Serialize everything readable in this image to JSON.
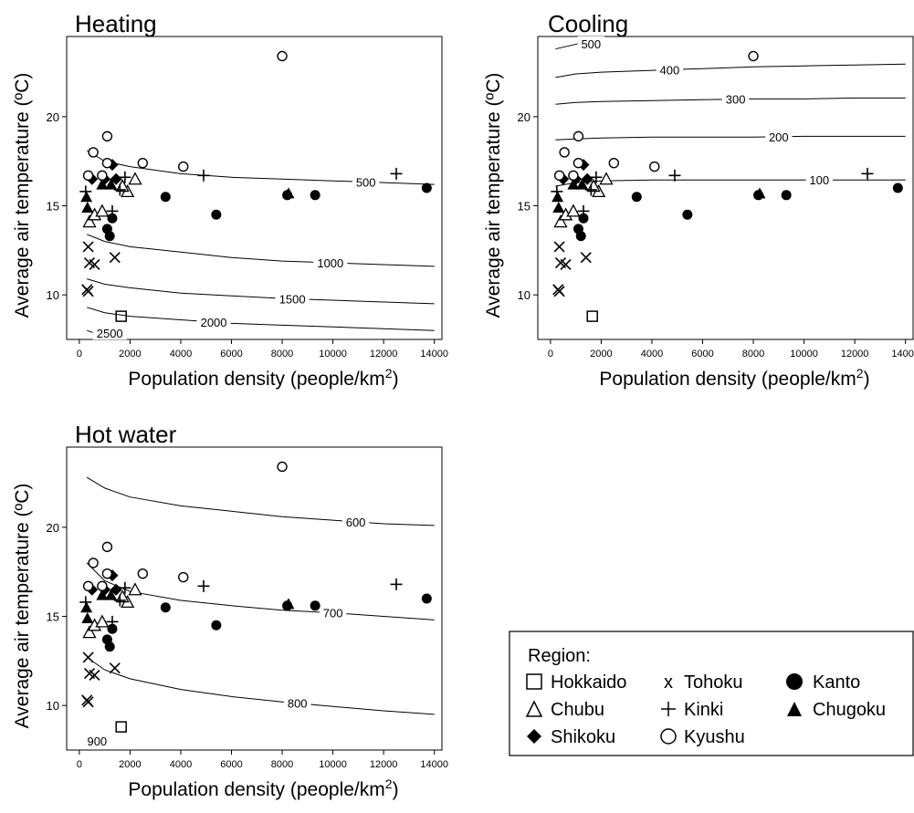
{
  "chart_data": [
    {
      "type": "scatter",
      "title": "Heating",
      "xlabel": "Population density (people/km",
      "xlabel_sup": "2",
      "xlabel_end": ")",
      "ylabel": "Average air temperature (ºC)",
      "xlim": [
        -500,
        14300
      ],
      "ylim": [
        7.5,
        24.5
      ],
      "xticks": [
        0,
        2000,
        4000,
        6000,
        8000,
        10000,
        12000,
        14000
      ],
      "yticks": [
        10,
        15,
        20
      ],
      "grid": false,
      "contours": [
        {
          "label": "500",
          "points": [
            [
              300,
              18.1
            ],
            [
              1000,
              17.5
            ],
            [
              2000,
              17.2
            ],
            [
              4000,
              16.8
            ],
            [
              6000,
              16.6
            ],
            [
              8000,
              16.5
            ],
            [
              10000,
              16.4
            ],
            [
              12000,
              16.3
            ],
            [
              14000,
              16.2
            ]
          ],
          "label_x": 11300
        },
        {
          "label": "1000",
          "points": [
            [
              300,
              13.4
            ],
            [
              1000,
              13.0
            ],
            [
              2000,
              12.7
            ],
            [
              4000,
              12.4
            ],
            [
              6000,
              12.1
            ],
            [
              8000,
              11.9
            ],
            [
              10000,
              11.8
            ],
            [
              12000,
              11.7
            ],
            [
              14000,
              11.6
            ]
          ],
          "label_x": 9900
        },
        {
          "label": "1500",
          "points": [
            [
              300,
              10.9
            ],
            [
              1000,
              10.6
            ],
            [
              2000,
              10.4
            ],
            [
              4000,
              10.1
            ],
            [
              6000,
              9.95
            ],
            [
              8000,
              9.8
            ],
            [
              10000,
              9.7
            ],
            [
              12000,
              9.6
            ],
            [
              14000,
              9.5
            ]
          ],
          "label_x": 8400
        },
        {
          "label": "2000",
          "points": [
            [
              300,
              9.3
            ],
            [
              1000,
              9.0
            ],
            [
              2000,
              8.8
            ],
            [
              4000,
              8.6
            ],
            [
              6000,
              8.4
            ],
            [
              8000,
              8.3
            ],
            [
              10000,
              8.2
            ],
            [
              12000,
              8.1
            ],
            [
              14000,
              8.0
            ]
          ],
          "label_x": 5300
        },
        {
          "label": "2500",
          "points": [
            [
              300,
              8.0
            ],
            [
              500,
              7.9
            ],
            [
              700,
              7.85
            ]
          ],
          "label_x": 1200
        }
      ]
    },
    {
      "type": "scatter",
      "title": "Cooling",
      "xlabel": "Population density (people/km",
      "xlabel_sup": "2",
      "xlabel_end": ")",
      "ylabel": "Average air temperature (ºC)",
      "xlim": [
        -500,
        14300
      ],
      "ylim": [
        7.5,
        24.5
      ],
      "xticks": [
        0,
        2000,
        4000,
        6000,
        8000,
        10000,
        12000,
        14000
      ],
      "yticks": [
        10,
        15,
        20
      ],
      "grid": false,
      "contours": [
        {
          "label": "500",
          "points": [
            [
              200,
              23.8
            ],
            [
              500,
              23.9
            ],
            [
              800,
              24.0
            ],
            [
              1100,
              24.1
            ]
          ],
          "label_x": 1600
        },
        {
          "label": "400",
          "points": [
            [
              200,
              22.2
            ],
            [
              1000,
              22.4
            ],
            [
              2000,
              22.5
            ],
            [
              4000,
              22.6
            ],
            [
              6000,
              22.7
            ],
            [
              8000,
              22.8
            ],
            [
              10000,
              22.85
            ],
            [
              12000,
              22.9
            ],
            [
              14000,
              22.95
            ]
          ],
          "label_x": 4700
        },
        {
          "label": "300",
          "points": [
            [
              200,
              20.7
            ],
            [
              1000,
              20.8
            ],
            [
              2000,
              20.85
            ],
            [
              4000,
              20.9
            ],
            [
              6000,
              20.95
            ],
            [
              8000,
              21.0
            ],
            [
              10000,
              21.0
            ],
            [
              12000,
              21.05
            ],
            [
              14000,
              21.05
            ]
          ],
          "label_x": 7300
        },
        {
          "label": "200",
          "points": [
            [
              200,
              18.7
            ],
            [
              1000,
              18.75
            ],
            [
              2000,
              18.8
            ],
            [
              4000,
              18.85
            ],
            [
              6000,
              18.85
            ],
            [
              8000,
              18.85
            ],
            [
              10000,
              18.9
            ],
            [
              12000,
              18.9
            ],
            [
              14000,
              18.9
            ]
          ],
          "label_x": 9000
        },
        {
          "label": "100",
          "points": [
            [
              200,
              16.1
            ],
            [
              1000,
              16.3
            ],
            [
              2000,
              16.4
            ],
            [
              4000,
              16.45
            ],
            [
              6000,
              16.45
            ],
            [
              8000,
              16.45
            ],
            [
              10000,
              16.45
            ],
            [
              12000,
              16.45
            ],
            [
              14000,
              16.45
            ]
          ],
          "label_x": 10600
        }
      ]
    },
    {
      "type": "scatter",
      "title": "Hot water",
      "xlabel": "Population density (people/km",
      "xlabel_sup": "2",
      "xlabel_end": ")",
      "ylabel": "Average air temperature (ºC)",
      "xlim": [
        -500,
        14300
      ],
      "ylim": [
        7.5,
        24.5
      ],
      "xticks": [
        0,
        2000,
        4000,
        6000,
        8000,
        10000,
        12000,
        14000
      ],
      "yticks": [
        10,
        15,
        20
      ],
      "grid": false,
      "contours": [
        {
          "label": "600",
          "points": [
            [
              300,
              22.8
            ],
            [
              1000,
              22.2
            ],
            [
              2000,
              21.7
            ],
            [
              4000,
              21.2
            ],
            [
              6000,
              20.9
            ],
            [
              8000,
              20.6
            ],
            [
              10000,
              20.4
            ],
            [
              12000,
              20.2
            ],
            [
              14000,
              20.1
            ]
          ],
          "label_x": 10900
        },
        {
          "label": "700",
          "points": [
            [
              300,
              18.0
            ],
            [
              1000,
              17.0
            ],
            [
              2000,
              16.4
            ],
            [
              4000,
              15.9
            ],
            [
              6000,
              15.6
            ],
            [
              8000,
              15.35
            ],
            [
              10000,
              15.2
            ],
            [
              12000,
              15.0
            ],
            [
              14000,
              14.8
            ]
          ],
          "label_x": 10000
        },
        {
          "label": "800",
          "points": [
            [
              300,
              12.7
            ],
            [
              1000,
              12.0
            ],
            [
              2000,
              11.5
            ],
            [
              4000,
              10.9
            ],
            [
              6000,
              10.5
            ],
            [
              8000,
              10.2
            ],
            [
              10000,
              9.95
            ],
            [
              12000,
              9.7
            ],
            [
              14000,
              9.5
            ]
          ],
          "label_x": 8600
        },
        {
          "label": "900",
          "points": [
            [
              300,
              8.1
            ],
            [
              500,
              8.0
            ]
          ],
          "label_x": 700
        }
      ]
    }
  ],
  "legend": {
    "title": "Region:",
    "items": [
      {
        "label": "Hokkaido",
        "marker": "open-square"
      },
      {
        "label": "Tohoku",
        "marker": "x"
      },
      {
        "label": "Kanto",
        "marker": "filled-circle"
      },
      {
        "label": "Chubu",
        "marker": "open-triangle"
      },
      {
        "label": "Kinki",
        "marker": "plus"
      },
      {
        "label": "Chugoku",
        "marker": "filled-triangle"
      },
      {
        "label": "Shikoku",
        "marker": "filled-diamond"
      },
      {
        "label": "Kyushu",
        "marker": "open-circle"
      }
    ]
  },
  "points": [
    {
      "region": "Hokkaido",
      "x": 1650,
      "y": 8.8
    },
    {
      "region": "Tohoku",
      "x": 350,
      "y": 12.7
    },
    {
      "region": "Tohoku",
      "x": 400,
      "y": 11.8
    },
    {
      "region": "Tohoku",
      "x": 600,
      "y": 11.7
    },
    {
      "region": "Tohoku",
      "x": 300,
      "y": 10.3
    },
    {
      "region": "Tohoku",
      "x": 350,
      "y": 10.2
    },
    {
      "region": "Tohoku",
      "x": 1400,
      "y": 12.1
    },
    {
      "region": "Kanto",
      "x": 1100,
      "y": 13.7
    },
    {
      "region": "Kanto",
      "x": 1200,
      "y": 13.3
    },
    {
      "region": "Kanto",
      "x": 1300,
      "y": 14.3
    },
    {
      "region": "Kanto",
      "x": 3400,
      "y": 15.5
    },
    {
      "region": "Kanto",
      "x": 5400,
      "y": 14.5
    },
    {
      "region": "Kanto",
      "x": 9300,
      "y": 15.6
    },
    {
      "region": "Kanto",
      "x": 13700,
      "y": 16.0
    },
    {
      "region": "Kanto",
      "x": 8200,
      "y": 15.6
    },
    {
      "region": "Chubu",
      "x": 400,
      "y": 14.1
    },
    {
      "region": "Chubu",
      "x": 600,
      "y": 14.5
    },
    {
      "region": "Chubu",
      "x": 900,
      "y": 14.7
    },
    {
      "region": "Chubu",
      "x": 1900,
      "y": 15.8
    },
    {
      "region": "Chubu",
      "x": 2200,
      "y": 16.5
    },
    {
      "region": "Chubu",
      "x": 1700,
      "y": 16.1
    },
    {
      "region": "Kinki",
      "x": 250,
      "y": 15.8
    },
    {
      "region": "Kinki",
      "x": 1300,
      "y": 14.7
    },
    {
      "region": "Kinki",
      "x": 1800,
      "y": 16.6
    },
    {
      "region": "Kinki",
      "x": 4900,
      "y": 16.7
    },
    {
      "region": "Kinki",
      "x": 12500,
      "y": 16.8
    },
    {
      "region": "Kinki",
      "x": 1600,
      "y": 15.9
    },
    {
      "region": "Chugoku",
      "x": 280,
      "y": 15.5
    },
    {
      "region": "Chugoku",
      "x": 320,
      "y": 14.9
    },
    {
      "region": "Chugoku",
      "x": 900,
      "y": 16.2
    },
    {
      "region": "Chugoku",
      "x": 1250,
      "y": 16.2
    },
    {
      "region": "Chugoku",
      "x": 8250,
      "y": 15.7
    },
    {
      "region": "Shikoku",
      "x": 500,
      "y": 16.5
    },
    {
      "region": "Shikoku",
      "x": 1000,
      "y": 16.5
    },
    {
      "region": "Shikoku",
      "x": 1300,
      "y": 17.3
    },
    {
      "region": "Shikoku",
      "x": 1450,
      "y": 16.5
    },
    {
      "region": "Kyushu",
      "x": 350,
      "y": 16.7
    },
    {
      "region": "Kyushu",
      "x": 550,
      "y": 18.0
    },
    {
      "region": "Kyushu",
      "x": 1100,
      "y": 18.9
    },
    {
      "region": "Kyushu",
      "x": 1100,
      "y": 17.4
    },
    {
      "region": "Kyushu",
      "x": 2500,
      "y": 17.4
    },
    {
      "region": "Kyushu",
      "x": 4100,
      "y": 17.2
    },
    {
      "region": "Kyushu",
      "x": 8000,
      "y": 23.4
    },
    {
      "region": "Kyushu",
      "x": 900,
      "y": 16.7
    }
  ]
}
